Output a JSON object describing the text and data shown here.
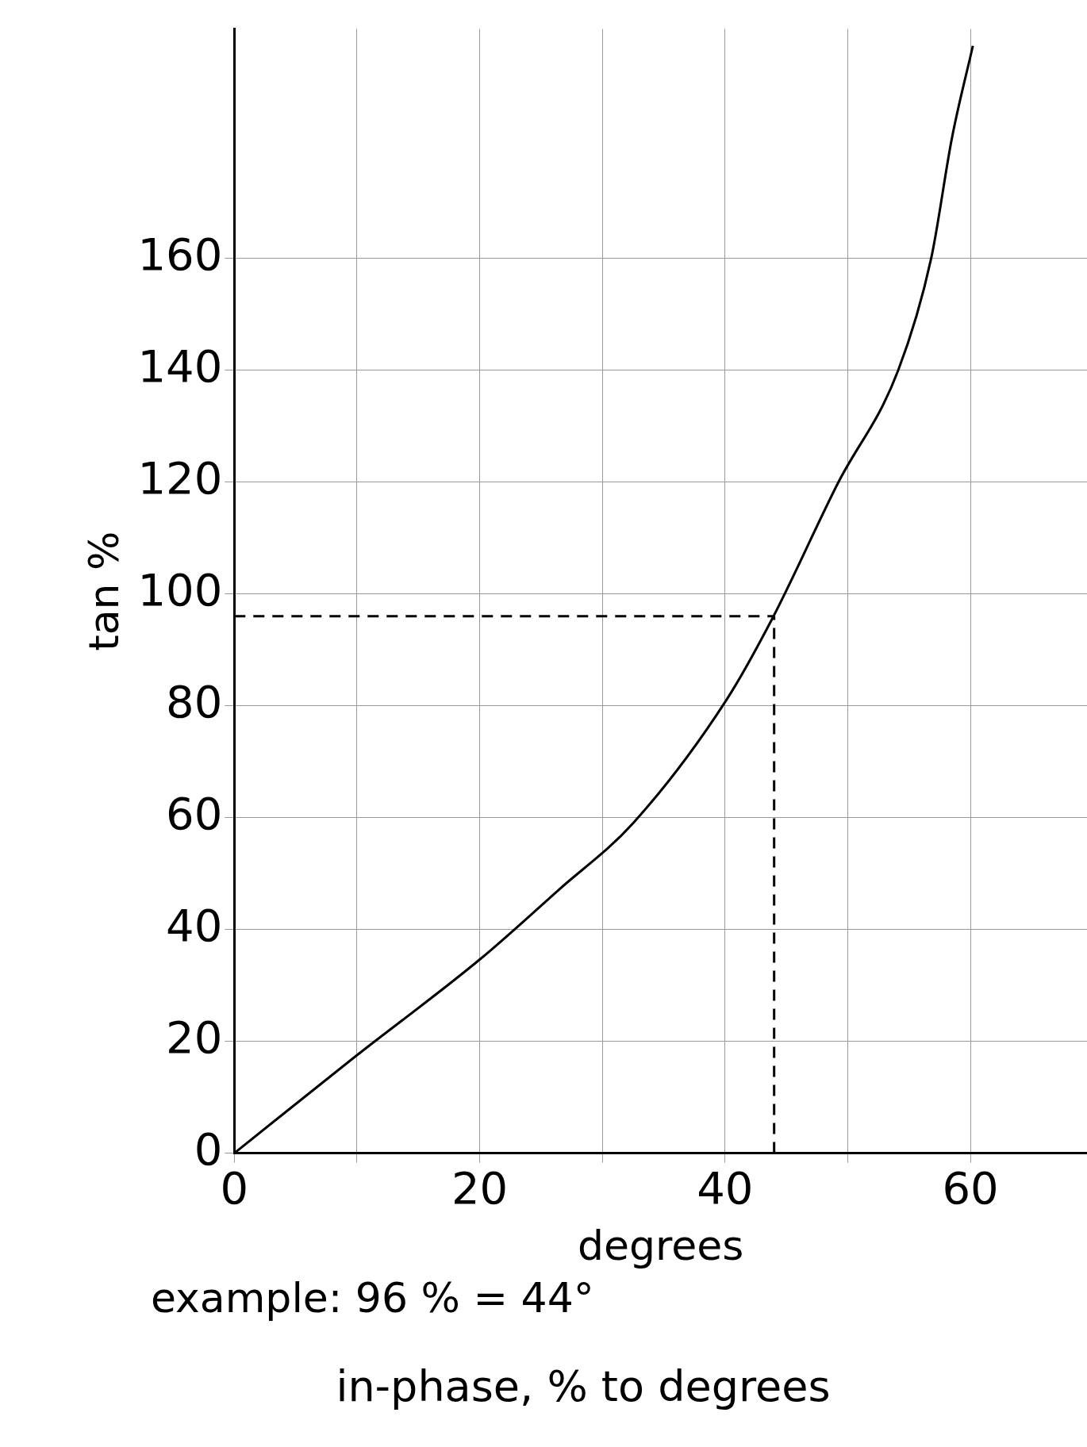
{
  "chart_data": {
    "type": "line",
    "title": "in-phase, % to degrees",
    "xlabel": "degrees",
    "ylabel": "tan %",
    "annotations": [
      "example: 96 % = 44°"
    ],
    "x": [
      0,
      9.7,
      20.1,
      26.4,
      32.5,
      40.1,
      43.9,
      49.2,
      54.1,
      56.8,
      58.5,
      60.2
    ],
    "series": [
      {
        "color": "#000000",
        "values": [
          0,
          17,
          34.8,
          47,
          59,
          81,
          95.8,
          119.8,
          139.9,
          160,
          181.6,
          198
        ]
      }
    ],
    "xlim": [
      0,
      69.5
    ],
    "ylim": [
      0,
      201
    ],
    "xticks": [
      0,
      {
        "value": 10,
        "label": null
      },
      20,
      {
        "value": 30,
        "label": null
      },
      40,
      {
        "value": 50,
        "label": null
      },
      60
    ],
    "yticks": [
      0,
      20,
      40,
      60,
      80,
      100,
      120,
      140,
      160
    ],
    "ref_lines": [
      {
        "axis": "y",
        "value": 96,
        "line_style": "dashed",
        "color": "#000000"
      },
      {
        "axis": "x",
        "value": 44,
        "line_style": "dashed",
        "color": "#000000"
      }
    ],
    "grid": true,
    "legend": false,
    "marker": "none",
    "line_style": "solid"
  }
}
